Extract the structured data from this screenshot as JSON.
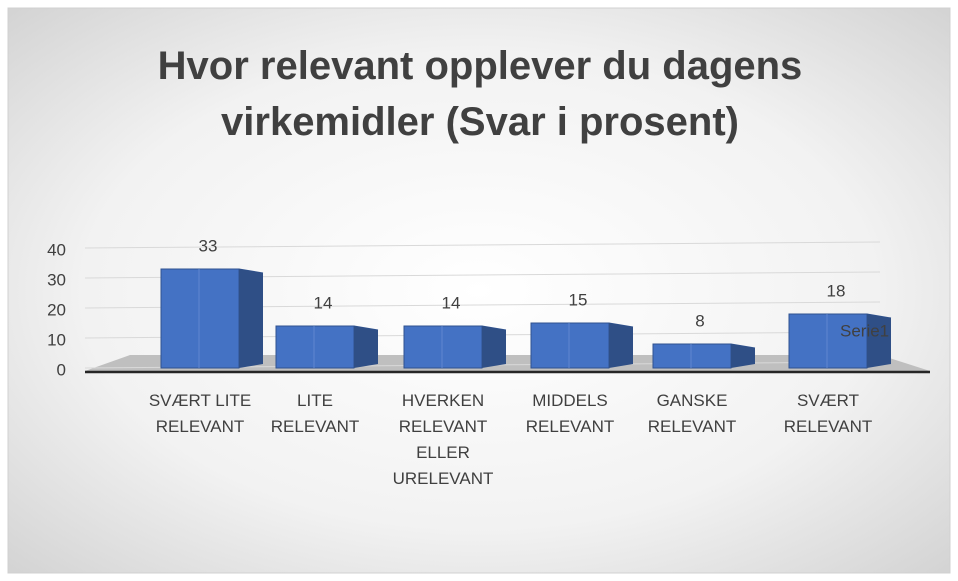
{
  "chart_data": {
    "type": "bar3d",
    "title": "Hvor relevant opplever du dagens virkemidler (Svar i prosent)",
    "categories": [
      "SVÆRT LITE RELEVANT",
      "LITE RELEVANT",
      "HVERKEN RELEVANT ELLER URELEVANT",
      "MIDDELS RELEVANT",
      "GANSKE RELEVANT",
      "SVÆRT RELEVANT"
    ],
    "series": [
      {
        "name": "Serie1",
        "color": "#4472c4",
        "values": [
          33,
          14,
          14,
          15,
          8,
          18
        ]
      }
    ],
    "ylim": [
      0,
      40
    ],
    "yticks": [
      0,
      10,
      20,
      30,
      40
    ],
    "grid": true
  }
}
